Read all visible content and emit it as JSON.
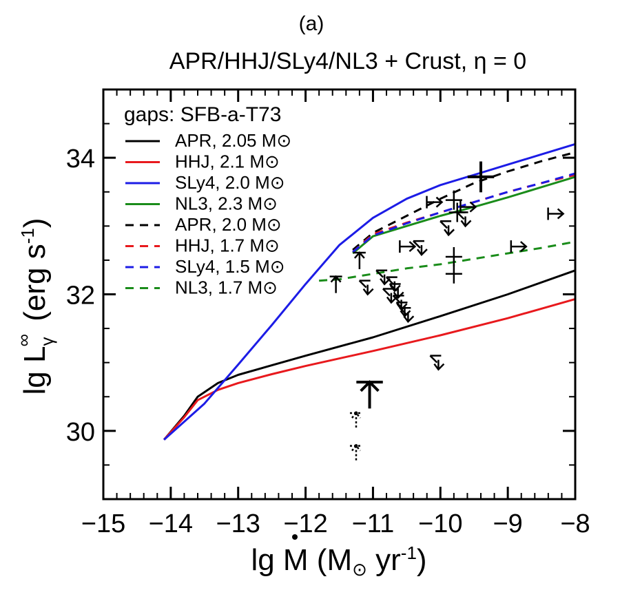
{
  "panel_label": "(a)",
  "chart_data": {
    "type": "line",
    "title": "APR/HHJ/SLy4/NL3 + Crust, η = 0",
    "xlabel": "lg Ṁ (M⊙ yr⁻¹)",
    "ylabel": "lg L∞γ (erg s⁻¹)",
    "xlim": [
      -15,
      -8
    ],
    "ylim": [
      29,
      35
    ],
    "x_ticks": [
      -15,
      -14,
      -13,
      -12,
      -11,
      -10,
      -9,
      -8
    ],
    "y_ticks": [
      30,
      32,
      34
    ],
    "x_tick_labels": [
      "−15",
      "−14",
      "−13",
      "−12",
      "−11",
      "−10",
      "−9",
      "−8"
    ],
    "y_tick_labels": [
      "30",
      "32",
      "34"
    ],
    "grid": false,
    "legend": {
      "placement": "top-left",
      "header": "gaps: SFB-a-T73",
      "entries": [
        {
          "label": "APR, 2.05 M⊙",
          "color": "#000000",
          "dash": "solid"
        },
        {
          "label": "HHJ, 2.1 M⊙",
          "color": "#e8191d",
          "dash": "solid"
        },
        {
          "label": "SLy4, 2.0 M⊙",
          "color": "#1c1ce6",
          "dash": "solid"
        },
        {
          "label": "NL3, 2.3 M⊙",
          "color": "#1a8c1a",
          "dash": "solid"
        },
        {
          "label": "APR, 2.0 M⊙",
          "color": "#000000",
          "dash": "dashed"
        },
        {
          "label": "HHJ, 1.7 M⊙",
          "color": "#e8191d",
          "dash": "dashed"
        },
        {
          "label": "SLy4, 1.5 M⊙",
          "color": "#1c1ce6",
          "dash": "dashed"
        },
        {
          "label": "NL3, 1.7 M⊙",
          "color": "#1a8c1a",
          "dash": "dashed"
        }
      ]
    },
    "series": [
      {
        "name": "APR, 2.05 M⊙",
        "color": "#000000",
        "dash": "solid",
        "x": [
          -14.1,
          -13.8,
          -13.6,
          -13.3,
          -13.0,
          -12.5,
          -12.0,
          -11.0,
          -10.0,
          -9.0,
          -8.0
        ],
        "y": [
          29.87,
          30.22,
          30.5,
          30.7,
          30.82,
          30.96,
          31.1,
          31.37,
          31.68,
          32.0,
          32.35
        ]
      },
      {
        "name": "HHJ, 2.1 M⊙",
        "color": "#e8191d",
        "dash": "solid",
        "x": [
          -14.1,
          -13.8,
          -13.6,
          -13.3,
          -13.0,
          -12.5,
          -12.0,
          -11.0,
          -10.0,
          -9.0,
          -8.0
        ],
        "y": [
          29.87,
          30.2,
          30.45,
          30.6,
          30.7,
          30.83,
          30.95,
          31.17,
          31.4,
          31.65,
          31.93
        ]
      },
      {
        "name": "SLy4, 2.0 M⊙",
        "color": "#1c1ce6",
        "dash": "solid",
        "x": [
          -14.1,
          -13.5,
          -13.0,
          -12.5,
          -12.0,
          -11.5,
          -11.0,
          -10.5,
          -10.0,
          -9.5,
          -9.0,
          -8.5,
          -8.0
        ],
        "y": [
          29.87,
          30.4,
          30.97,
          31.55,
          32.15,
          32.72,
          33.12,
          33.4,
          33.6,
          33.75,
          33.9,
          34.05,
          34.2
        ]
      },
      {
        "name": "NL3, 2.3 M⊙",
        "color": "#1a8c1a",
        "dash": "solid",
        "x": [
          -11.3,
          -11.0,
          -10.5,
          -10.0,
          -9.5,
          -9.0,
          -8.5,
          -8.0
        ],
        "y": [
          32.6,
          32.85,
          33.0,
          33.15,
          33.28,
          33.42,
          33.57,
          33.72
        ]
      },
      {
        "name": "APR, 2.0 M⊙",
        "color": "#000000",
        "dash": "dashed",
        "x": [
          -11.3,
          -11.0,
          -10.5,
          -10.0,
          -9.5,
          -9.0,
          -8.5,
          -8.0
        ],
        "y": [
          32.65,
          32.9,
          33.15,
          33.4,
          33.63,
          33.8,
          33.95,
          34.08
        ]
      },
      {
        "name": "HHJ, 1.7 M⊙",
        "color": "#e8191d",
        "dash": "dashed",
        "x": [
          -11.3,
          -11.0,
          -10.5,
          -10.0,
          -9.5,
          -9.0,
          -8.5,
          -8.0
        ],
        "y": [
          32.62,
          32.88,
          33.05,
          33.2,
          33.35,
          33.5,
          33.63,
          33.75
        ]
      },
      {
        "name": "SLy4, 1.5 M⊙",
        "color": "#1c1ce6",
        "dash": "dashed",
        "x": [
          -11.3,
          -11.0,
          -10.5,
          -10.0,
          -9.5,
          -9.0,
          -8.5,
          -8.0
        ],
        "y": [
          32.62,
          32.86,
          33.04,
          33.2,
          33.35,
          33.5,
          33.63,
          33.77
        ]
      },
      {
        "name": "NL3, 1.7 M⊙",
        "color": "#1a8c1a",
        "dash": "dashed",
        "x": [
          -11.8,
          -11.5,
          -11.0,
          -10.5,
          -10.0,
          -9.5,
          -9.0,
          -8.5,
          -8.0
        ],
        "y": [
          32.2,
          32.22,
          32.3,
          32.38,
          32.44,
          32.52,
          32.6,
          32.68,
          32.77
        ]
      }
    ],
    "observations": [
      {
        "x": -9.4,
        "y": 33.72,
        "kind": "cross",
        "size": "large"
      },
      {
        "x": -9.8,
        "y": 33.38,
        "kind": "cross",
        "size": "normal"
      },
      {
        "x": -9.75,
        "y": 33.2,
        "kind": "cross",
        "size": "normal"
      },
      {
        "x": -9.8,
        "y": 32.55,
        "kind": "cross",
        "size": "normal"
      },
      {
        "x": -9.8,
        "y": 32.3,
        "kind": "cross",
        "size": "normal"
      },
      {
        "x": -10.1,
        "y": 33.35,
        "kind": "right",
        "size": "normal"
      },
      {
        "x": -9.6,
        "y": 33.28,
        "kind": "right",
        "size": "normal"
      },
      {
        "x": -8.85,
        "y": 32.7,
        "kind": "right",
        "size": "normal"
      },
      {
        "x": -8.3,
        "y": 33.18,
        "kind": "right",
        "size": "normal"
      },
      {
        "x": -10.5,
        "y": 32.7,
        "kind": "right",
        "size": "normal"
      },
      {
        "x": -11.2,
        "y": 32.55,
        "kind": "upright",
        "size": "normal"
      },
      {
        "x": -11.55,
        "y": 32.2,
        "kind": "upright",
        "size": "normal"
      },
      {
        "x": -9.65,
        "y": 33.1,
        "kind": "upperlim",
        "size": "normal"
      },
      {
        "x": -9.9,
        "y": 32.97,
        "kind": "upperlim",
        "size": "normal"
      },
      {
        "x": -10.3,
        "y": 32.68,
        "kind": "upperlim",
        "size": "normal"
      },
      {
        "x": -11.1,
        "y": 32.1,
        "kind": "upperlim",
        "size": "normal"
      },
      {
        "x": -10.85,
        "y": 32.25,
        "kind": "upperlim",
        "size": "normal"
      },
      {
        "x": -10.7,
        "y": 32.15,
        "kind": "upperlim",
        "size": "normal"
      },
      {
        "x": -10.65,
        "y": 32.05,
        "kind": "upperlim",
        "size": "normal"
      },
      {
        "x": -10.75,
        "y": 31.98,
        "kind": "upperlim",
        "size": "normal"
      },
      {
        "x": -10.6,
        "y": 31.88,
        "kind": "upperlim",
        "size": "normal"
      },
      {
        "x": -10.55,
        "y": 31.78,
        "kind": "upperlim",
        "size": "normal"
      },
      {
        "x": -10.5,
        "y": 31.7,
        "kind": "upperlim",
        "size": "normal"
      },
      {
        "x": -10.05,
        "y": 31.0,
        "kind": "upperlim",
        "size": "normal"
      },
      {
        "x": -11.05,
        "y": 30.65,
        "kind": "lowerlim",
        "size": "large"
      },
      {
        "x": -11.25,
        "y": 30.2,
        "kind": "dotted",
        "size": "normal"
      },
      {
        "x": -11.25,
        "y": 29.72,
        "kind": "dotted",
        "size": "normal"
      }
    ]
  }
}
